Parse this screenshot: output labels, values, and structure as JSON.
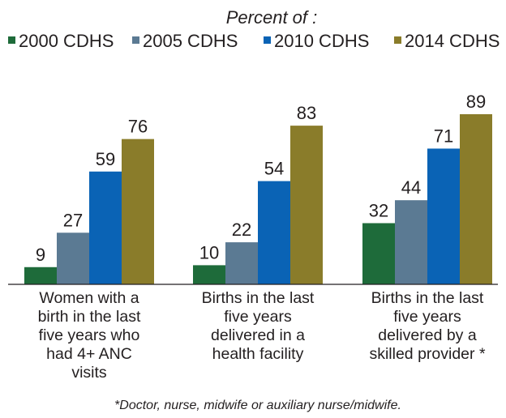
{
  "chart_data": {
    "type": "bar",
    "title": "",
    "subtitle": "Percent of :",
    "xlabel": "",
    "ylabel": "",
    "ylim": [
      0,
      100
    ],
    "grid": false,
    "legend_position": "top",
    "categories": [
      [
        "Women with a",
        "birth in the last",
        "five years who",
        "had 4+ ANC",
        "visits"
      ],
      [
        "Births in the last",
        "five years",
        "delivered in a",
        "health facility"
      ],
      [
        "Births in the last",
        "five years",
        "delivered by a",
        "skilled provider *"
      ]
    ],
    "series": [
      {
        "name": "2000 CDHS",
        "color": "#1e6b3a",
        "values": [
          9,
          10,
          32
        ]
      },
      {
        "name": "2005 CDHS",
        "color": "#5b7a93",
        "values": [
          27,
          22,
          44
        ]
      },
      {
        "name": "2010 CDHS",
        "color": "#0a63b5",
        "values": [
          59,
          54,
          71
        ]
      },
      {
        "name": "2014 CDHS",
        "color": "#8a7c2a",
        "values": [
          76,
          83,
          89
        ]
      }
    ],
    "footnote": "*Doctor, nurse, midwife or auxiliary nurse/midwife."
  }
}
